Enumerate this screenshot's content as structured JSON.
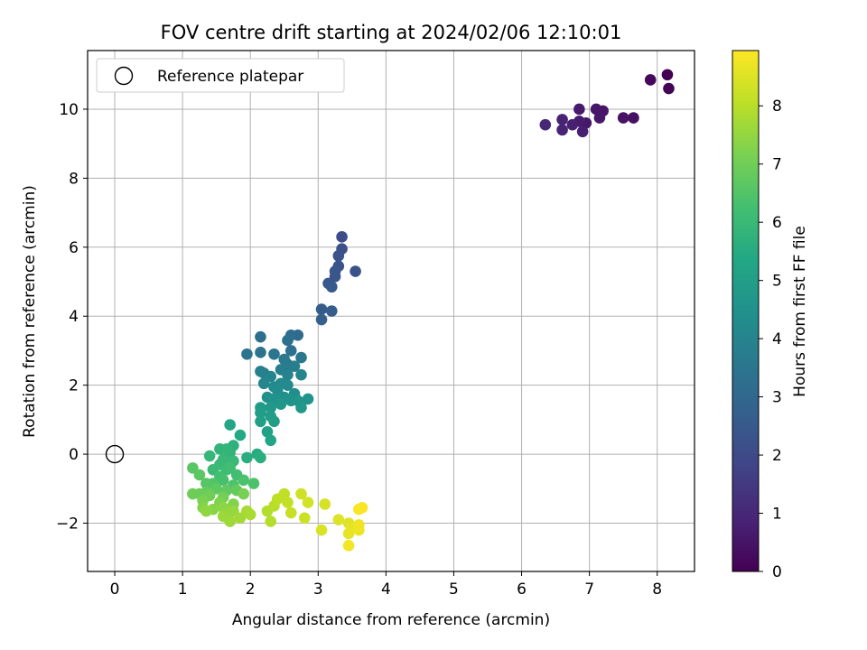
{
  "chart_data": {
    "type": "scatter",
    "title": "FOV centre drift starting at 2024/02/06 12:10:01",
    "xlabel": "Angular distance from reference (arcmin)",
    "ylabel": "Rotation from reference (arcmin)",
    "xlim": [
      -0.4,
      8.55
    ],
    "ylim": [
      -3.4,
      11.7
    ],
    "xticks": [
      0,
      1,
      2,
      3,
      4,
      5,
      6,
      7,
      8
    ],
    "yticks": [
      -2,
      0,
      2,
      4,
      6,
      8,
      10
    ],
    "xtick_labels": [
      "0",
      "1",
      "2",
      "3",
      "4",
      "5",
      "6",
      "7",
      "8"
    ],
    "ytick_labels": [
      "−2",
      "0",
      "2",
      "4",
      "6",
      "8",
      "10"
    ],
    "grid": true,
    "colormap": "viridis",
    "colorbar": {
      "label": "Hours from first FF file",
      "range": [
        0,
        8.95
      ],
      "ticks": [
        0,
        1,
        2,
        3,
        4,
        5,
        6,
        7,
        8
      ],
      "tick_labels": [
        "0",
        "1",
        "2",
        "3",
        "4",
        "5",
        "6",
        "7",
        "8"
      ]
    },
    "legend": {
      "position": "top-left",
      "entries": [
        {
          "label": "Reference platepar",
          "marker": "open-circle"
        }
      ]
    },
    "reference_point": {
      "x": 0,
      "y": 0
    },
    "points": [
      {
        "x": 8.15,
        "y": 11.0,
        "c": 0.0
      },
      {
        "x": 8.17,
        "y": 10.6,
        "c": 0.05
      },
      {
        "x": 7.9,
        "y": 10.85,
        "c": 0.15
      },
      {
        "x": 7.65,
        "y": 9.75,
        "c": 0.4
      },
      {
        "x": 7.5,
        "y": 9.75,
        "c": 0.45
      },
      {
        "x": 7.2,
        "y": 9.95,
        "c": 0.5
      },
      {
        "x": 7.1,
        "y": 10.0,
        "c": 0.55
      },
      {
        "x": 7.15,
        "y": 9.75,
        "c": 0.6
      },
      {
        "x": 6.95,
        "y": 9.6,
        "c": 0.6
      },
      {
        "x": 6.85,
        "y": 10.0,
        "c": 0.65
      },
      {
        "x": 6.85,
        "y": 9.65,
        "c": 0.7
      },
      {
        "x": 6.9,
        "y": 9.35,
        "c": 0.75
      },
      {
        "x": 6.75,
        "y": 9.55,
        "c": 0.8
      },
      {
        "x": 6.6,
        "y": 9.7,
        "c": 0.85
      },
      {
        "x": 6.6,
        "y": 9.4,
        "c": 0.9
      },
      {
        "x": 6.35,
        "y": 9.55,
        "c": 1.0
      },
      {
        "x": 3.35,
        "y": 6.3,
        "c": 2.1
      },
      {
        "x": 3.35,
        "y": 5.95,
        "c": 2.2
      },
      {
        "x": 3.3,
        "y": 5.75,
        "c": 2.25
      },
      {
        "x": 3.3,
        "y": 5.45,
        "c": 2.3
      },
      {
        "x": 3.55,
        "y": 5.3,
        "c": 2.3
      },
      {
        "x": 3.25,
        "y": 5.3,
        "c": 2.35
      },
      {
        "x": 3.25,
        "y": 5.15,
        "c": 2.4
      },
      {
        "x": 3.15,
        "y": 4.95,
        "c": 2.45
      },
      {
        "x": 3.2,
        "y": 4.85,
        "c": 2.5
      },
      {
        "x": 3.05,
        "y": 4.2,
        "c": 2.6
      },
      {
        "x": 3.2,
        "y": 4.15,
        "c": 2.65
      },
      {
        "x": 3.05,
        "y": 3.9,
        "c": 2.7
      },
      {
        "x": 2.7,
        "y": 3.45,
        "c": 3.1
      },
      {
        "x": 2.6,
        "y": 3.45,
        "c": 3.2
      },
      {
        "x": 2.55,
        "y": 3.3,
        "c": 3.3
      },
      {
        "x": 2.6,
        "y": 3.0,
        "c": 3.35
      },
      {
        "x": 2.15,
        "y": 3.4,
        "c": 3.3
      },
      {
        "x": 1.95,
        "y": 2.9,
        "c": 3.4
      },
      {
        "x": 2.15,
        "y": 2.95,
        "c": 3.45
      },
      {
        "x": 2.35,
        "y": 2.9,
        "c": 3.5
      },
      {
        "x": 2.75,
        "y": 2.8,
        "c": 3.55
      },
      {
        "x": 2.5,
        "y": 2.75,
        "c": 3.6
      },
      {
        "x": 2.55,
        "y": 2.6,
        "c": 3.7
      },
      {
        "x": 2.65,
        "y": 2.55,
        "c": 3.75
      },
      {
        "x": 2.45,
        "y": 2.45,
        "c": 3.8
      },
      {
        "x": 2.15,
        "y": 2.4,
        "c": 3.85
      },
      {
        "x": 2.2,
        "y": 2.35,
        "c": 3.9
      },
      {
        "x": 2.55,
        "y": 2.3,
        "c": 3.95
      },
      {
        "x": 2.75,
        "y": 2.3,
        "c": 4.0
      },
      {
        "x": 2.3,
        "y": 2.25,
        "c": 4.05
      },
      {
        "x": 2.2,
        "y": 2.05,
        "c": 4.1
      },
      {
        "x": 2.45,
        "y": 2.05,
        "c": 4.15
      },
      {
        "x": 2.35,
        "y": 1.95,
        "c": 4.2
      },
      {
        "x": 2.55,
        "y": 2.0,
        "c": 4.25
      },
      {
        "x": 2.4,
        "y": 1.85,
        "c": 4.3
      },
      {
        "x": 2.65,
        "y": 1.75,
        "c": 4.35
      },
      {
        "x": 2.25,
        "y": 1.65,
        "c": 4.4
      },
      {
        "x": 2.5,
        "y": 1.65,
        "c": 4.45
      },
      {
        "x": 2.35,
        "y": 1.6,
        "c": 4.5
      },
      {
        "x": 2.6,
        "y": 1.55,
        "c": 4.55
      },
      {
        "x": 2.85,
        "y": 1.6,
        "c": 4.6
      },
      {
        "x": 2.7,
        "y": 1.55,
        "c": 4.65
      },
      {
        "x": 2.45,
        "y": 1.45,
        "c": 4.7
      },
      {
        "x": 2.75,
        "y": 1.35,
        "c": 4.75
      },
      {
        "x": 2.3,
        "y": 1.35,
        "c": 4.8
      },
      {
        "x": 2.15,
        "y": 1.35,
        "c": 4.85
      },
      {
        "x": 2.15,
        "y": 1.2,
        "c": 4.9
      },
      {
        "x": 2.3,
        "y": 1.1,
        "c": 4.95
      },
      {
        "x": 2.35,
        "y": 0.95,
        "c": 5.0
      },
      {
        "x": 2.15,
        "y": 0.95,
        "c": 5.05
      },
      {
        "x": 2.25,
        "y": 0.65,
        "c": 5.1
      },
      {
        "x": 2.3,
        "y": 0.4,
        "c": 5.2
      },
      {
        "x": 1.7,
        "y": 0.85,
        "c": 5.3
      },
      {
        "x": 1.85,
        "y": 0.55,
        "c": 5.4
      },
      {
        "x": 2.1,
        "y": 0.0,
        "c": 5.5
      },
      {
        "x": 2.15,
        "y": -0.1,
        "c": 5.6
      },
      {
        "x": 1.95,
        "y": -0.1,
        "c": 5.6
      },
      {
        "x": 1.75,
        "y": 0.25,
        "c": 5.7
      },
      {
        "x": 1.7,
        "y": 0.05,
        "c": 5.8
      },
      {
        "x": 1.55,
        "y": 0.15,
        "c": 5.8
      },
      {
        "x": 1.65,
        "y": 0.15,
        "c": 5.85
      },
      {
        "x": 1.4,
        "y": -0.05,
        "c": 5.9
      },
      {
        "x": 1.6,
        "y": -0.15,
        "c": 5.95
      },
      {
        "x": 1.75,
        "y": -0.2,
        "c": 6.0
      },
      {
        "x": 1.55,
        "y": -0.3,
        "c": 6.0
      },
      {
        "x": 1.45,
        "y": -0.45,
        "c": 6.05
      },
      {
        "x": 1.65,
        "y": -0.45,
        "c": 6.1
      },
      {
        "x": 1.7,
        "y": -0.4,
        "c": 6.15
      },
      {
        "x": 1.8,
        "y": -0.6,
        "c": 6.2
      },
      {
        "x": 1.55,
        "y": -0.65,
        "c": 6.25
      },
      {
        "x": 1.6,
        "y": -0.75,
        "c": 6.3
      },
      {
        "x": 1.9,
        "y": -0.75,
        "c": 6.35
      },
      {
        "x": 2.05,
        "y": -0.85,
        "c": 6.4
      },
      {
        "x": 1.75,
        "y": -0.9,
        "c": 6.45
      },
      {
        "x": 1.45,
        "y": -0.85,
        "c": 6.5
      },
      {
        "x": 1.35,
        "y": -0.85,
        "c": 6.55
      },
      {
        "x": 1.15,
        "y": -0.4,
        "c": 6.6
      },
      {
        "x": 1.25,
        "y": -0.6,
        "c": 6.65
      },
      {
        "x": 1.5,
        "y": -1.0,
        "c": 6.7
      },
      {
        "x": 1.65,
        "y": -1.05,
        "c": 6.75
      },
      {
        "x": 1.8,
        "y": -1.05,
        "c": 6.8
      },
      {
        "x": 1.35,
        "y": -1.1,
        "c": 6.85
      },
      {
        "x": 1.25,
        "y": -1.15,
        "c": 6.9
      },
      {
        "x": 1.15,
        "y": -1.15,
        "c": 6.95
      },
      {
        "x": 1.4,
        "y": -1.2,
        "c": 7.0
      },
      {
        "x": 1.6,
        "y": -1.25,
        "c": 7.05
      },
      {
        "x": 1.9,
        "y": -1.15,
        "c": 7.1
      },
      {
        "x": 1.3,
        "y": -1.35,
        "c": 7.15
      },
      {
        "x": 1.55,
        "y": -1.4,
        "c": 7.2
      },
      {
        "x": 1.75,
        "y": -1.45,
        "c": 7.25
      },
      {
        "x": 1.3,
        "y": -1.55,
        "c": 7.3
      },
      {
        "x": 1.45,
        "y": -1.6,
        "c": 7.35
      },
      {
        "x": 1.6,
        "y": -1.55,
        "c": 7.4
      },
      {
        "x": 1.35,
        "y": -1.65,
        "c": 7.45
      },
      {
        "x": 1.65,
        "y": -1.7,
        "c": 7.5
      },
      {
        "x": 1.75,
        "y": -1.65,
        "c": 7.55
      },
      {
        "x": 1.6,
        "y": -1.8,
        "c": 7.6
      },
      {
        "x": 1.7,
        "y": -1.95,
        "c": 7.65
      },
      {
        "x": 1.85,
        "y": -1.85,
        "c": 7.7
      },
      {
        "x": 1.95,
        "y": -1.65,
        "c": 7.75
      },
      {
        "x": 2.0,
        "y": -1.75,
        "c": 7.8
      },
      {
        "x": 2.25,
        "y": -1.65,
        "c": 7.9
      },
      {
        "x": 2.3,
        "y": -1.95,
        "c": 7.95
      },
      {
        "x": 2.35,
        "y": -1.5,
        "c": 8.0
      },
      {
        "x": 2.4,
        "y": -1.3,
        "c": 8.05
      },
      {
        "x": 2.5,
        "y": -1.15,
        "c": 8.1
      },
      {
        "x": 2.55,
        "y": -1.4,
        "c": 8.15
      },
      {
        "x": 2.6,
        "y": -1.7,
        "c": 8.2
      },
      {
        "x": 2.8,
        "y": -1.85,
        "c": 8.25
      },
      {
        "x": 2.75,
        "y": -1.15,
        "c": 8.3
      },
      {
        "x": 2.85,
        "y": -1.4,
        "c": 8.35
      },
      {
        "x": 3.1,
        "y": -1.45,
        "c": 8.4
      },
      {
        "x": 3.05,
        "y": -2.2,
        "c": 8.45
      },
      {
        "x": 3.3,
        "y": -1.9,
        "c": 8.5
      },
      {
        "x": 3.45,
        "y": -2.0,
        "c": 8.55
      },
      {
        "x": 3.5,
        "y": -2.15,
        "c": 8.6
      },
      {
        "x": 3.45,
        "y": -2.3,
        "c": 8.65
      },
      {
        "x": 3.6,
        "y": -2.2,
        "c": 8.7
      },
      {
        "x": 3.6,
        "y": -2.05,
        "c": 8.75
      },
      {
        "x": 3.45,
        "y": -2.65,
        "c": 8.8
      },
      {
        "x": 3.6,
        "y": -1.6,
        "c": 8.85
      },
      {
        "x": 3.65,
        "y": -1.55,
        "c": 8.9
      }
    ]
  }
}
